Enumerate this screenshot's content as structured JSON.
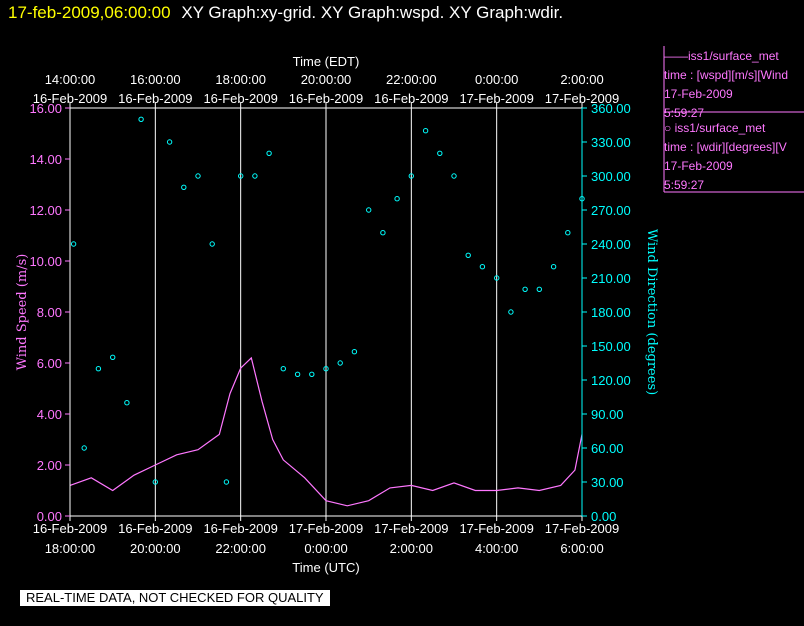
{
  "header": {
    "timestamp": "17-feb-2009,06:00:00",
    "graphs": "XY Graph:xy-grid.  XY Graph:wspd.  XY Graph:wdir."
  },
  "legend": [
    {
      "line1": "——iss1/surface_met",
      "line2": "time : [wspd][m/s][Wind",
      "line3": "17-Feb-2009",
      "line4": "5:59:27"
    },
    {
      "line1": "○ iss1/surface_met",
      "line2": "time : [wdir][degrees][V",
      "line3": "17-Feb-2009",
      "line4": "5:59:27"
    }
  ],
  "footer_note": "REAL-TIME DATA, NOT CHECKED FOR QUALITY",
  "colors": {
    "speed": "#ff77ff",
    "direction": "#00ffff",
    "title": "#ffff00",
    "axes": "#ffffff"
  },
  "chart_data": {
    "type": "line+scatter",
    "top_axis": {
      "label": "Time (EDT)",
      "ticks": [
        {
          "time": "14:00:00",
          "date": "16-Feb-2009"
        },
        {
          "time": "16:00:00",
          "date": "16-Feb-2009"
        },
        {
          "time": "18:00:00",
          "date": "16-Feb-2009"
        },
        {
          "time": "20:00:00",
          "date": "16-Feb-2009"
        },
        {
          "time": "22:00:00",
          "date": "16-Feb-2009"
        },
        {
          "time": "0:00:00",
          "date": "17-Feb-2009"
        },
        {
          "time": "2:00:00",
          "date": "17-Feb-2009"
        }
      ]
    },
    "bottom_axis": {
      "label": "Time (UTC)",
      "ticks": [
        {
          "date": "16-Feb-2009",
          "time": "18:00:00"
        },
        {
          "date": "16-Feb-2009",
          "time": "20:00:00"
        },
        {
          "date": "16-Feb-2009",
          "time": "22:00:00"
        },
        {
          "date": "17-Feb-2009",
          "time": "0:00:00"
        },
        {
          "date": "17-Feb-2009",
          "time": "2:00:00"
        },
        {
          "date": "17-Feb-2009",
          "time": "4:00:00"
        },
        {
          "date": "17-Feb-2009",
          "time": "6:00:00"
        }
      ],
      "xlim": [
        "16-Feb-2009 18:00",
        "17-Feb-2009 06:00"
      ]
    },
    "left_axis": {
      "label": "Wind Speed (m/s)",
      "ylim": [
        0,
        16
      ],
      "ticks": [
        "0.00",
        "2.00",
        "4.00",
        "6.00",
        "8.00",
        "10.00",
        "12.00",
        "14.00",
        "16.00"
      ]
    },
    "right_axis": {
      "label": "Wind Direction (degrees)",
      "ylim": [
        0,
        360
      ],
      "ticks": [
        "0.00",
        "30.00",
        "60.00",
        "90.00",
        "120.00",
        "150.00",
        "180.00",
        "210.00",
        "240.00",
        "270.00",
        "300.00",
        "330.00",
        "360.00"
      ]
    },
    "grid": "vertical lines at each 2-hour tick",
    "series": [
      {
        "axis": "left",
        "style": "line",
        "x": [
          "16-Feb-2009 18:00",
          "16-Feb-2009 18:30",
          "16-Feb-2009 19:00",
          "16-Feb-2009 19:30",
          "16-Feb-2009 20:00",
          "16-Feb-2009 20:30",
          "16-Feb-2009 21:00",
          "16-Feb-2009 21:30",
          "16-Feb-2009 21:45",
          "16-Feb-2009 22:00",
          "16-Feb-2009 22:15",
          "16-Feb-2009 22:30",
          "16-Feb-2009 22:45",
          "16-Feb-2009 23:00",
          "16-Feb-2009 23:30",
          "17-Feb-2009 00:00",
          "17-Feb-2009 00:30",
          "17-Feb-2009 01:00",
          "17-Feb-2009 01:30",
          "17-Feb-2009 02:00",
          "17-Feb-2009 02:30",
          "17-Feb-2009 03:00",
          "17-Feb-2009 03:30",
          "17-Feb-2009 04:00",
          "17-Feb-2009 04:30",
          "17-Feb-2009 05:00",
          "17-Feb-2009 05:30",
          "17-Feb-2009 05:50",
          "17-Feb-2009 06:00"
        ],
        "values": [
          1.2,
          1.5,
          1.0,
          1.6,
          2.0,
          2.4,
          2.6,
          3.2,
          4.8,
          5.8,
          6.2,
          4.5,
          3.0,
          2.2,
          1.5,
          0.6,
          0.4,
          0.6,
          1.1,
          1.2,
          1.0,
          1.3,
          1.0,
          1.0,
          1.1,
          1.0,
          1.2,
          1.8,
          3.2
        ]
      },
      {
        "axis": "right",
        "style": "markers",
        "x": [
          "16-Feb-2009 18:05",
          "16-Feb-2009 18:20",
          "16-Feb-2009 18:40",
          "16-Feb-2009 19:00",
          "16-Feb-2009 19:20",
          "16-Feb-2009 19:40",
          "16-Feb-2009 20:00",
          "16-Feb-2009 20:20",
          "16-Feb-2009 20:40",
          "16-Feb-2009 21:00",
          "16-Feb-2009 21:20",
          "16-Feb-2009 21:40",
          "16-Feb-2009 22:00",
          "16-Feb-2009 22:20",
          "16-Feb-2009 22:40",
          "16-Feb-2009 23:00",
          "16-Feb-2009 23:20",
          "16-Feb-2009 23:40",
          "17-Feb-2009 00:00",
          "17-Feb-2009 00:20",
          "17-Feb-2009 00:40",
          "17-Feb-2009 01:00",
          "17-Feb-2009 01:20",
          "17-Feb-2009 01:40",
          "17-Feb-2009 02:00",
          "17-Feb-2009 02:20",
          "17-Feb-2009 02:40",
          "17-Feb-2009 03:00",
          "17-Feb-2009 03:20",
          "17-Feb-2009 03:40",
          "17-Feb-2009 04:00",
          "17-Feb-2009 04:20",
          "17-Feb-2009 04:40",
          "17-Feb-2009 05:00",
          "17-Feb-2009 05:20",
          "17-Feb-2009 05:40",
          "17-Feb-2009 06:00"
        ],
        "values": [
          240,
          60,
          130,
          140,
          100,
          350,
          30,
          330,
          290,
          300,
          240,
          30,
          300,
          300,
          320,
          130,
          125,
          125,
          130,
          135,
          145,
          270,
          250,
          280,
          300,
          340,
          320,
          300,
          230,
          220,
          210,
          180,
          200,
          200,
          220,
          250,
          280
        ]
      }
    ]
  }
}
